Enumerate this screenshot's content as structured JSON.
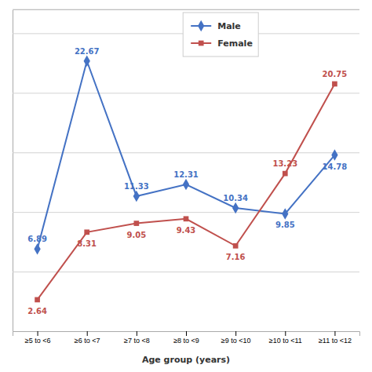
{
  "chart_data": {
    "type": "line",
    "x_label": "Age group (years)",
    "categories": [
      "≥5 to <6",
      "≥6 to <7",
      "≥7 to <8",
      "≥8 to <9",
      "≥9 to <10",
      "≥10 to <11",
      "≥11 to <12"
    ],
    "series": [
      {
        "name": "Male",
        "color": "#4472C4",
        "marker": "diamond",
        "values": [
          6.89,
          22.67,
          11.33,
          12.31,
          10.34,
          9.85,
          14.78
        ]
      },
      {
        "name": "Female",
        "color": "#C0504D",
        "marker": "square",
        "values": [
          2.64,
          8.31,
          9.05,
          9.43,
          7.16,
          13.23,
          20.75
        ]
      }
    ],
    "ylim": [
      0,
      27
    ],
    "yticks": [
      0,
      5,
      10,
      15,
      20,
      25
    ],
    "grid": true,
    "tick_labels": "x",
    "data_labels": true,
    "legend": "top"
  }
}
